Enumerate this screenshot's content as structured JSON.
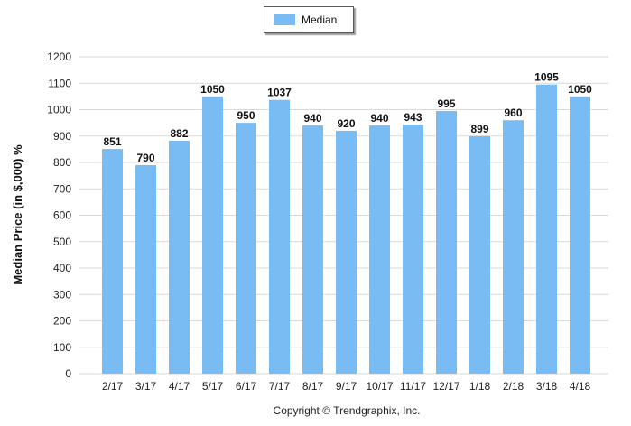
{
  "chart_data": {
    "type": "bar",
    "categories": [
      "2/17",
      "3/17",
      "4/17",
      "5/17",
      "6/17",
      "7/17",
      "8/17",
      "9/17",
      "10/17",
      "11/17",
      "12/17",
      "1/18",
      "2/18",
      "3/18",
      "4/18"
    ],
    "series": [
      {
        "name": "Median",
        "values": [
          851,
          790,
          882,
          1050,
          950,
          1037,
          940,
          920,
          940,
          943,
          995,
          899,
          960,
          1095,
          1050
        ]
      }
    ],
    "xlabel": "",
    "ylabel": "Median Price (in $,000) %",
    "ylim": [
      0,
      1200
    ],
    "yticks": [
      0,
      100,
      200,
      300,
      400,
      500,
      600,
      700,
      800,
      900,
      1000,
      1100,
      1200
    ],
    "grid": true,
    "legend": "top-center",
    "bar_color": "#79bbf3",
    "grid_color": "#d9d9d9",
    "data_labels": true
  },
  "footer": {
    "copyright": "Copyright © Trendgraphix, Inc."
  }
}
